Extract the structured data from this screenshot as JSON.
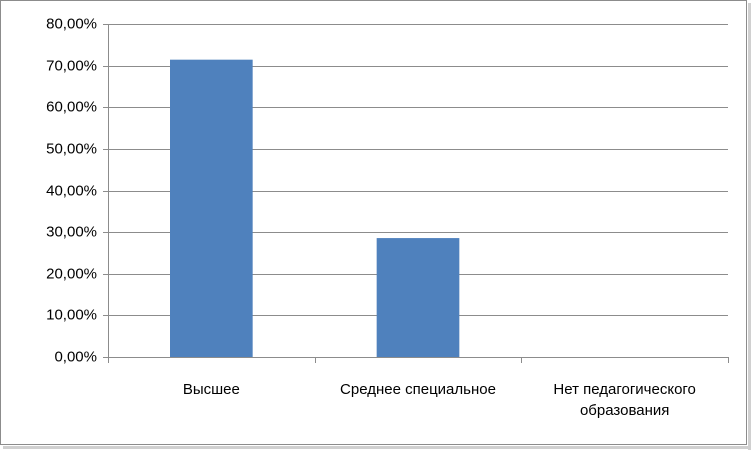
{
  "chart_data": {
    "type": "bar",
    "categories": [
      "Высшее",
      "Среднее специальное",
      "Нет педагогического образования"
    ],
    "values": [
      71.43,
      28.57,
      0
    ],
    "color": "#4f81bd",
    "ylim": [
      0,
      80
    ],
    "yticks": [
      {
        "value": 0,
        "label": "0,00%"
      },
      {
        "value": 10,
        "label": "10,00%"
      },
      {
        "value": 20,
        "label": "20,00%"
      },
      {
        "value": 30,
        "label": "30,00%"
      },
      {
        "value": 40,
        "label": "40,00%"
      },
      {
        "value": 50,
        "label": "50,00%"
      },
      {
        "value": 60,
        "label": "60,00%"
      },
      {
        "value": 70,
        "label": "70,00%"
      },
      {
        "value": 80,
        "label": "80,00%"
      }
    ],
    "grid": true
  }
}
